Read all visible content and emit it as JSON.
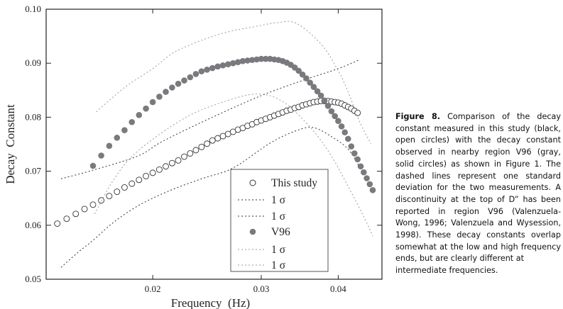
{
  "chart_data": {
    "type": "scatter",
    "xlabel": "Frequency  (Hz)",
    "ylabel": "Decay  Constant",
    "xscale": "log",
    "xlim": [
      0.01343,
      0.0471
    ],
    "ylim": [
      0.05,
      0.1
    ],
    "xticks": [
      0.02,
      0.03,
      0.04
    ],
    "xtick_labels": [
      "0.02",
      "0.03",
      "0.04"
    ],
    "yticks": [
      0.05,
      0.06,
      0.07,
      0.08,
      0.09,
      0.1
    ],
    "ytick_labels": [
      "0.05",
      "0.06",
      "0.07",
      "0.08",
      "0.09",
      "0.10"
    ],
    "legend_position": "bottom-center",
    "series": [
      {
        "name": "This study",
        "kind": "open-circles",
        "color": "#333333",
        "x": [
          0.014,
          0.0145,
          0.015,
          0.0155,
          0.016,
          0.0165,
          0.017,
          0.0175,
          0.018,
          0.0185,
          0.019,
          0.0195,
          0.02,
          0.0205,
          0.021,
          0.0215,
          0.022,
          0.0225,
          0.023,
          0.0235,
          0.024,
          0.0245,
          0.025,
          0.0255,
          0.026,
          0.0265,
          0.027,
          0.0275,
          0.028,
          0.0285,
          0.029,
          0.0295,
          0.03,
          0.0305,
          0.031,
          0.0315,
          0.032,
          0.0325,
          0.033,
          0.0335,
          0.034,
          0.0345,
          0.035,
          0.0355,
          0.036,
          0.0365,
          0.037,
          0.0375,
          0.038,
          0.0385,
          0.039,
          0.0395,
          0.04,
          0.0405,
          0.041,
          0.0415,
          0.042,
          0.0425,
          0.043
        ],
        "y": [
          0.0603,
          0.0612,
          0.0621,
          0.063,
          0.0638,
          0.0646,
          0.0654,
          0.0662,
          0.067,
          0.0677,
          0.0684,
          0.0691,
          0.0697,
          0.0703,
          0.0709,
          0.0715,
          0.072,
          0.0727,
          0.0733,
          0.0739,
          0.0745,
          0.0751,
          0.0757,
          0.0761,
          0.0765,
          0.0769,
          0.0773,
          0.0777,
          0.078,
          0.0784,
          0.0787,
          0.0791,
          0.0794,
          0.0797,
          0.08,
          0.0803,
          0.0806,
          0.0809,
          0.0812,
          0.0814,
          0.0817,
          0.0819,
          0.0822,
          0.0824,
          0.0826,
          0.0828,
          0.0829,
          0.083,
          0.083,
          0.083,
          0.0829,
          0.0828,
          0.0827,
          0.0825,
          0.0822,
          0.0819,
          0.0816,
          0.0812,
          0.0808
        ]
      },
      {
        "name": "1 σ",
        "kind": "dotted-line",
        "color": "#333333",
        "x": [
          0.0142,
          0.016,
          0.0189,
          0.0208,
          0.025,
          0.03,
          0.035,
          0.04,
          0.0432
        ],
        "y": [
          0.0686,
          0.0702,
          0.0728,
          0.0756,
          0.08,
          0.084,
          0.0868,
          0.089,
          0.0906
        ]
      },
      {
        "name": "1 σ",
        "kind": "dotted-line",
        "color": "#333333",
        "x": [
          0.0142,
          0.0151,
          0.016,
          0.0173,
          0.019,
          0.0212,
          0.024,
          0.027,
          0.031,
          0.034,
          0.0364,
          0.039,
          0.0415,
          0.0434
        ],
        "y": [
          0.0522,
          0.0549,
          0.0572,
          0.0606,
          0.0637,
          0.0663,
          0.0686,
          0.0706,
          0.0752,
          0.0774,
          0.0781,
          0.0764,
          0.0741,
          0.0706
        ]
      },
      {
        "name": "V96",
        "kind": "solid-circles",
        "color": "#7a7a7e",
        "x": [
          0.016,
          0.0165,
          0.017,
          0.0175,
          0.018,
          0.0185,
          0.019,
          0.0195,
          0.02,
          0.0205,
          0.021,
          0.0215,
          0.022,
          0.0225,
          0.023,
          0.0235,
          0.024,
          0.0245,
          0.025,
          0.0255,
          0.026,
          0.0265,
          0.027,
          0.0275,
          0.028,
          0.0285,
          0.029,
          0.0295,
          0.03,
          0.0305,
          0.031,
          0.0315,
          0.032,
          0.0325,
          0.033,
          0.0335,
          0.034,
          0.0345,
          0.035,
          0.0355,
          0.036,
          0.0365,
          0.037,
          0.0375,
          0.038,
          0.0385,
          0.039,
          0.0395,
          0.04,
          0.0405,
          0.041,
          0.0415,
          0.042,
          0.0425,
          0.043,
          0.0435,
          0.044,
          0.0445,
          0.045,
          0.0455
        ],
        "y": [
          0.071,
          0.0729,
          0.0747,
          0.0762,
          0.0776,
          0.0791,
          0.0804,
          0.0816,
          0.0828,
          0.0838,
          0.0847,
          0.0855,
          0.0862,
          0.0868,
          0.0874,
          0.088,
          0.0885,
          0.0888,
          0.0891,
          0.0894,
          0.0896,
          0.0898,
          0.09,
          0.0902,
          0.0904,
          0.0905,
          0.0906,
          0.0907,
          0.0908,
          0.0908,
          0.0908,
          0.0907,
          0.0906,
          0.0904,
          0.0901,
          0.0897,
          0.0892,
          0.0886,
          0.0879,
          0.0872,
          0.0864,
          0.0856,
          0.0848,
          0.084,
          0.0831,
          0.0821,
          0.0811,
          0.0802,
          0.0793,
          0.0783,
          0.0772,
          0.076,
          0.0746,
          0.0733,
          0.0722,
          0.0709,
          0.0698,
          0.0687,
          0.0676,
          0.0665
        ]
      },
      {
        "name": "1 σ",
        "kind": "dotted-line",
        "color": "#9a9a9a",
        "x": [
          0.0162,
          0.018,
          0.02,
          0.0219,
          0.0257,
          0.03,
          0.0318,
          0.0342,
          0.0376,
          0.04,
          0.0415,
          0.0434,
          0.0452
        ],
        "y": [
          0.081,
          0.0855,
          0.089,
          0.0923,
          0.0954,
          0.097,
          0.0975,
          0.0974,
          0.0934,
          0.0886,
          0.0847,
          0.079,
          0.0751
        ]
      },
      {
        "name": "1 σ",
        "kind": "dotted-line",
        "color": "#9a9a9a",
        "x": [
          0.0161,
          0.0173,
          0.0189,
          0.0225,
          0.026,
          0.0296,
          0.0327,
          0.0363,
          0.039,
          0.0415,
          0.0441,
          0.0455
        ],
        "y": [
          0.0621,
          0.0685,
          0.0737,
          0.0798,
          0.0828,
          0.0843,
          0.0827,
          0.0777,
          0.0728,
          0.0672,
          0.0614,
          0.058
        ]
      }
    ]
  },
  "caption": {
    "label": "Figure 8.",
    "body": " Comparison of the decay constant measured in this study (black, open circles) with the decay constant observed in nearby region V96 (gray, solid circles) as shown in Figure 1. The dashed lines represent one standard deviation for the two measurements. A discontinuity at the top of D” has been reported in region V96 (Valenzuela-Wong, 1996; Valenzuela and Wysession, 1998). These decay constants overlap somewhat at the low and high frequency ends, but are clearly different at",
    "last_line": "intermediate frequencies."
  }
}
